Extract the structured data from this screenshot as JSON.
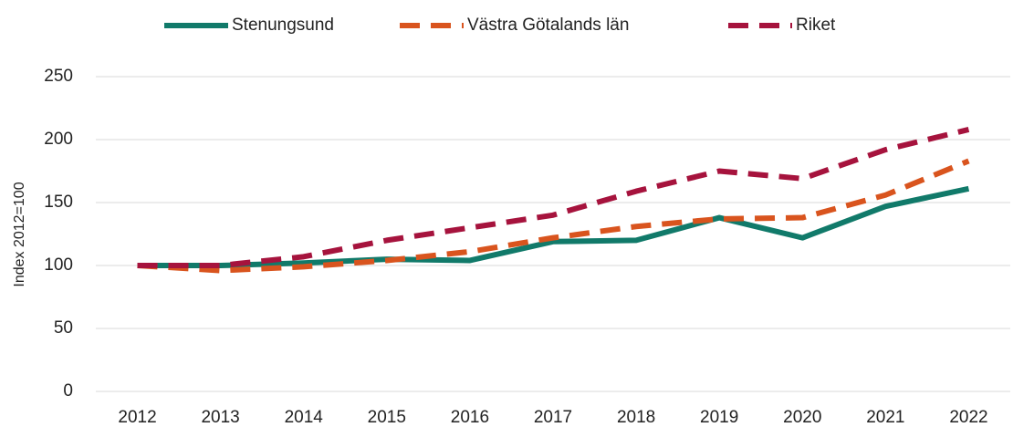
{
  "chart_data": {
    "type": "line",
    "y_label": "Index 2012=100",
    "categories": [
      "2012",
      "2013",
      "2014",
      "2015",
      "2016",
      "2017",
      "2018",
      "2019",
      "2020",
      "2021",
      "2022"
    ],
    "series": [
      {
        "name": "Stenungsund",
        "color": "#117a6a",
        "dashed": false,
        "values": [
          100,
          100,
          102,
          105,
          104,
          119,
          120,
          138,
          122,
          147,
          161
        ]
      },
      {
        "name": "Västra Götalands län",
        "color": "#d9541e",
        "dashed": true,
        "values": [
          100,
          96,
          99,
          104,
          111,
          122,
          131,
          137,
          138,
          156,
          183
        ]
      },
      {
        "name": "Riket",
        "color": "#a6133d",
        "dashed": true,
        "values": [
          100,
          100,
          107,
          120,
          130,
          140,
          159,
          175,
          169,
          192,
          208
        ]
      }
    ],
    "ylim": [
      0,
      250
    ],
    "yticks": [
      0,
      50,
      100,
      150,
      200,
      250
    ],
    "grid": true,
    "legend": "top"
  }
}
